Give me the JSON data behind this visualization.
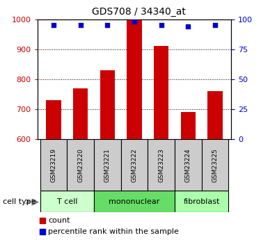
{
  "title": "GDS708 / 34340_at",
  "samples": [
    "GSM23219",
    "GSM23220",
    "GSM23221",
    "GSM23222",
    "GSM23223",
    "GSM23224",
    "GSM23225"
  ],
  "counts": [
    730,
    770,
    830,
    1000,
    910,
    690,
    760
  ],
  "percentiles": [
    95,
    95,
    95,
    98,
    95,
    94,
    95
  ],
  "ylim_left": [
    600,
    1000
  ],
  "ylim_right": [
    0,
    100
  ],
  "yticks_left": [
    600,
    700,
    800,
    900,
    1000
  ],
  "yticks_right": [
    0,
    25,
    50,
    75,
    100
  ],
  "bar_color": "#cc0000",
  "dot_color": "#0000cc",
  "ct_ranges": [
    [
      -0.5,
      1.5,
      "T cell",
      "#ccffcc"
    ],
    [
      1.5,
      4.5,
      "mononuclear",
      "#66dd66"
    ],
    [
      4.5,
      6.5,
      "fibroblast",
      "#aaffaa"
    ]
  ],
  "cell_type_label": "cell type",
  "legend_count_label": "count",
  "legend_percentile_label": "percentile rank within the sample",
  "tick_color_left": "#cc0000",
  "tick_color_right": "#0000cc",
  "bg_color": "#ffffff",
  "sample_box_color": "#cccccc"
}
